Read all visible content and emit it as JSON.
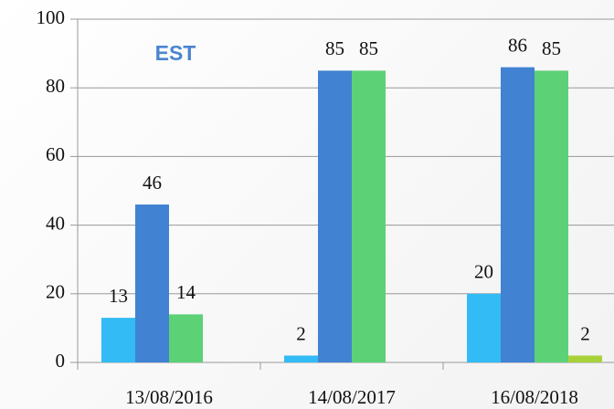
{
  "chart_data": {
    "type": "bar",
    "annotation": "EST",
    "categories": [
      "13/08/2016",
      "14/08/2017",
      "16/08/2018"
    ],
    "series": [
      {
        "color": "#33bbf5",
        "values": [
          13,
          2,
          20
        ]
      },
      {
        "color": "#4182d2",
        "values": [
          46,
          85,
          86
        ]
      },
      {
        "color": "#5cd176",
        "values": [
          14,
          85,
          85
        ]
      },
      {
        "color": "#a8d13a",
        "values": [
          null,
          null,
          2
        ]
      }
    ],
    "ylim": [
      0,
      100
    ],
    "yticks": [
      0,
      20,
      40,
      60,
      80,
      100
    ],
    "grid": true
  }
}
